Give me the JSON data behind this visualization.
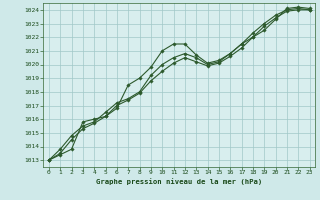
{
  "title": "Graphe pression niveau de la mer (hPa)",
  "bg_color": "#cfe9e9",
  "plot_bg_color": "#d8eeee",
  "grid_color": "#a0c8c8",
  "line_color": "#2d5a2d",
  "marker_color": "#2d5a2d",
  "xlim": [
    -0.5,
    23.5
  ],
  "ylim": [
    1012.5,
    1024.5
  ],
  "xticks": [
    0,
    1,
    2,
    3,
    4,
    5,
    6,
    7,
    8,
    9,
    10,
    11,
    12,
    13,
    14,
    15,
    16,
    17,
    18,
    19,
    20,
    21,
    22,
    23
  ],
  "yticks": [
    1013,
    1014,
    1015,
    1016,
    1017,
    1018,
    1019,
    1020,
    1021,
    1022,
    1023,
    1024
  ],
  "series1": [
    1013.0,
    1013.4,
    1013.8,
    1015.8,
    1016.0,
    1016.2,
    1016.8,
    1018.5,
    1019.0,
    1019.8,
    1021.0,
    1021.5,
    1021.5,
    1020.7,
    1020.1,
    1020.3,
    1020.8,
    1021.5,
    1022.0,
    1022.5,
    1023.3,
    1024.1,
    1024.2,
    1024.1
  ],
  "series2": [
    1013.0,
    1013.8,
    1014.8,
    1015.5,
    1015.8,
    1016.5,
    1017.2,
    1017.5,
    1018.0,
    1019.2,
    1020.0,
    1020.5,
    1020.8,
    1020.5,
    1020.0,
    1020.2,
    1020.8,
    1021.5,
    1022.3,
    1023.0,
    1023.6,
    1024.0,
    1024.1,
    1024.0
  ],
  "series3": [
    1013.0,
    1013.5,
    1014.5,
    1015.3,
    1015.7,
    1016.2,
    1017.0,
    1017.4,
    1017.9,
    1018.8,
    1019.5,
    1020.1,
    1020.5,
    1020.2,
    1019.9,
    1020.1,
    1020.6,
    1021.2,
    1022.0,
    1022.8,
    1023.4,
    1023.9,
    1024.0,
    1024.0
  ]
}
